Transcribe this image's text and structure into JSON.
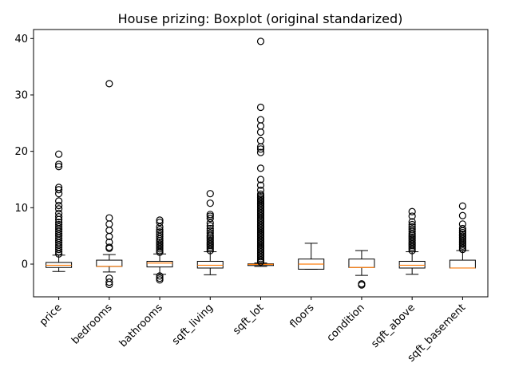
{
  "chart_data": {
    "type": "boxplot",
    "title": "House prizing: Boxplot (original standarized)",
    "xlabel": "",
    "ylabel": "",
    "ylim": [
      -5.8,
      41.6
    ],
    "yticks": [
      0,
      10,
      20,
      30,
      40
    ],
    "grid": false,
    "colors": {
      "box": "#000000",
      "median": "#ff7f0e",
      "outlier": "#000000",
      "background": "#ffffff"
    },
    "categories": [
      "price",
      "bedrooms",
      "bathrooms",
      "sqft_living",
      "sqft_lot",
      "floors",
      "condition",
      "sqft_above",
      "sqft_basement"
    ],
    "boxes": [
      {
        "name": "price",
        "whisker_low": -1.3,
        "q1": -0.6,
        "median": -0.2,
        "q3": 0.3,
        "whisker_high": 1.6,
        "outliers": [
          1.8,
          2.2,
          2.6,
          3.0,
          3.4,
          3.8,
          4.2,
          4.6,
          5.0,
          5.4,
          5.8,
          6.2,
          6.6,
          7.0,
          7.4,
          7.9,
          8.4,
          9.0,
          9.8,
          10.4,
          11.2,
          12.5,
          13.2,
          13.6,
          17.3,
          17.7,
          19.5
        ]
      },
      {
        "name": "bedrooms",
        "whisker_low": -1.4,
        "q1": -0.4,
        "median": -0.4,
        "q3": 0.7,
        "whisker_high": 1.7,
        "outliers": [
          -3.6,
          -3.2,
          -2.5,
          2.8,
          3.0,
          3.9,
          4.9,
          6.0,
          7.1,
          8.2,
          32.0
        ]
      },
      {
        "name": "bathrooms",
        "whisker_low": -1.8,
        "q1": -0.5,
        "median": 0.2,
        "q3": 0.5,
        "whisker_high": 1.8,
        "outliers": [
          -2.8,
          -2.5,
          -2.1,
          2.1,
          2.4,
          2.7,
          3.0,
          3.3,
          3.6,
          3.9,
          4.2,
          4.5,
          4.9,
          5.3,
          5.7,
          6.1,
          6.6,
          7.4,
          7.8
        ]
      },
      {
        "name": "sqft_living",
        "whisker_low": -1.9,
        "q1": -0.7,
        "median": -0.2,
        "q3": 0.5,
        "whisker_high": 2.2,
        "outliers": [
          2.4,
          2.7,
          3.0,
          3.3,
          3.6,
          3.9,
          4.2,
          4.5,
          4.8,
          5.1,
          5.5,
          5.9,
          6.3,
          6.8,
          7.3,
          8.1,
          8.5,
          8.8,
          10.8,
          12.5
        ]
      },
      {
        "name": "sqft_lot",
        "whisker_low": -0.4,
        "q1": -0.25,
        "median": -0.05,
        "q3": 0.05,
        "whisker_high": 0.2,
        "outliers": [
          0.4,
          0.7,
          1.0,
          1.3,
          1.6,
          1.9,
          2.2,
          2.5,
          2.8,
          3.1,
          3.4,
          3.7,
          4.0,
          4.3,
          4.6,
          4.9,
          5.2,
          5.5,
          5.8,
          6.1,
          6.4,
          6.7,
          7.0,
          7.3,
          7.6,
          7.9,
          8.2,
          8.5,
          8.8,
          9.1,
          9.4,
          9.7,
          10.0,
          10.3,
          10.6,
          10.9,
          11.2,
          11.5,
          11.8,
          12.1,
          12.4,
          13.1,
          14.0,
          15.0,
          17.0,
          19.8,
          20.4,
          20.8,
          21.9,
          23.4,
          24.5,
          25.6,
          27.8,
          39.5
        ]
      },
      {
        "name": "floors",
        "whisker_low": -0.9,
        "q1": -0.9,
        "median": 0.0,
        "q3": 0.9,
        "whisker_high": 3.7,
        "outliers": []
      },
      {
        "name": "condition",
        "whisker_low": -2.0,
        "q1": -0.6,
        "median": -0.6,
        "q3": 0.9,
        "whisker_high": 2.4,
        "outliers": [
          -3.7,
          -3.5
        ]
      },
      {
        "name": "sqft_above",
        "whisker_low": -1.8,
        "q1": -0.7,
        "median": -0.2,
        "q3": 0.5,
        "whisker_high": 2.2,
        "outliers": [
          2.4,
          2.7,
          3.0,
          3.3,
          3.6,
          3.9,
          4.2,
          4.5,
          4.8,
          5.1,
          5.4,
          5.8,
          6.2,
          6.6,
          7.0,
          7.5,
          8.5,
          9.3
        ]
      },
      {
        "name": "sqft_basement",
        "whisker_low": -0.7,
        "q1": -0.7,
        "median": -0.7,
        "q3": 0.7,
        "whisker_high": 2.4,
        "outliers": [
          2.6,
          2.9,
          3.2,
          3.5,
          3.8,
          4.1,
          4.4,
          4.7,
          5.0,
          5.3,
          5.6,
          5.9,
          6.3,
          7.1,
          8.6,
          10.3
        ]
      }
    ]
  }
}
